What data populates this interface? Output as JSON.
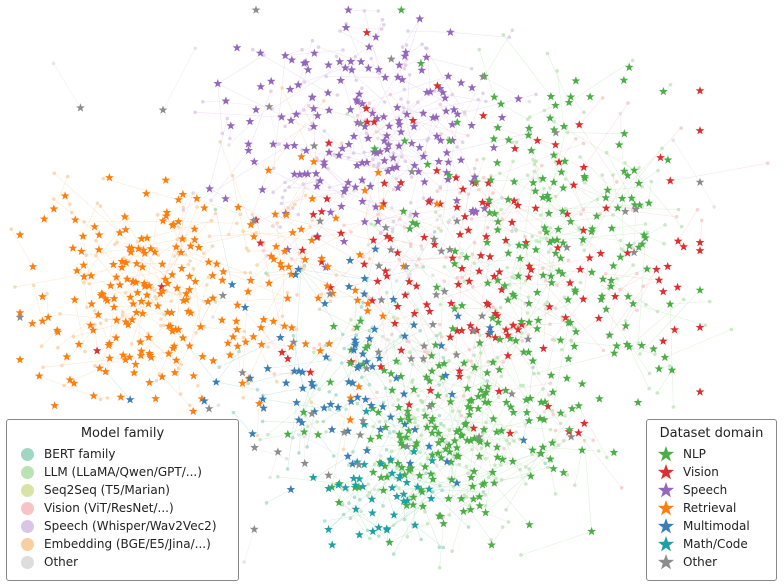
{
  "legend_family": {
    "title": "Model family",
    "items": [
      {
        "label": "BERT family",
        "color": "#9fd7c3",
        "icon": "circle"
      },
      {
        "label": "LLM (LLaMA/Qwen/GPT/...)",
        "color": "#b9e3b2",
        "icon": "circle"
      },
      {
        "label": "Seq2Seq (T5/Marian)",
        "color": "#d9e3a6",
        "icon": "circle"
      },
      {
        "label": "Vision (ViT/ResNet/...)",
        "color": "#f6c4c4",
        "icon": "circle"
      },
      {
        "label": "Speech (Whisper/Wav2Vec2)",
        "color": "#d9c6e6",
        "icon": "circle"
      },
      {
        "label": "Embedding (BGE/E5/Jina/...)",
        "color": "#f8cfa2",
        "icon": "circle"
      },
      {
        "label": "Other",
        "color": "#dddddd",
        "icon": "circle"
      }
    ]
  },
  "legend_domain": {
    "title": "Dataset domain",
    "items": [
      {
        "label": "NLP",
        "color": "#4cae47",
        "icon": "star"
      },
      {
        "label": "Vision",
        "color": "#dc2f2f",
        "icon": "star"
      },
      {
        "label": "Speech",
        "color": "#9467bd",
        "icon": "star"
      },
      {
        "label": "Retrieval",
        "color": "#ff7f0e",
        "icon": "star"
      },
      {
        "label": "Multimodal",
        "color": "#3a7fb6",
        "icon": "star"
      },
      {
        "label": "Math/Code",
        "color": "#1fa0a5",
        "icon": "star"
      },
      {
        "label": "Other",
        "color": "#8c8c8c",
        "icon": "star"
      }
    ]
  }
}
